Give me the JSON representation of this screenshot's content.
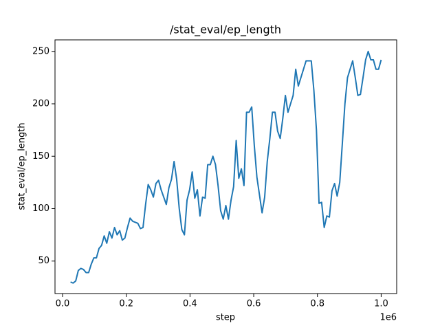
{
  "chart_data": {
    "type": "line",
    "title": "/stat_eval/ep_length",
    "x_label": "step",
    "y_label": "stat_eval/ep_length",
    "x_offset_label": "1e6",
    "x": [
      25000,
      33125,
      41250,
      49375,
      57500,
      65625,
      73750,
      81875,
      90000,
      98125,
      106250,
      114375,
      122500,
      130625,
      138750,
      146875,
      155000,
      163125,
      171250,
      179375,
      187500,
      195625,
      203750,
      211875,
      220000,
      228125,
      236250,
      244375,
      252500,
      260625,
      268750,
      276875,
      285000,
      293125,
      301250,
      309375,
      317500,
      325625,
      333750,
      341875,
      350000,
      358125,
      366250,
      374375,
      382500,
      390625,
      398750,
      406875,
      415000,
      423125,
      431250,
      439375,
      447500,
      455625,
      463750,
      471875,
      480000,
      488125,
      496250,
      504375,
      512500,
      520625,
      528750,
      536875,
      545000,
      553125,
      561250,
      569375,
      577500,
      585625,
      593750,
      601875,
      610000,
      618125,
      626250,
      634375,
      642500,
      650625,
      658750,
      666875,
      675000,
      683125,
      691250,
      699375,
      707500,
      715625,
      723750,
      731875,
      740000,
      748125,
      756250,
      764375,
      772500,
      780625,
      788750,
      796875,
      805000,
      813125,
      821250,
      829375,
      837500,
      845625,
      853750,
      861875,
      870000,
      878125,
      886250,
      894375,
      902500,
      910625,
      918750,
      926875,
      935000,
      943125,
      951250,
      959375,
      967500,
      975625,
      983750,
      991875,
      1000000
    ],
    "series": [
      {
        "name": "stat_eval/ep_length",
        "color": "#1f77b4",
        "values": [
          30,
          29,
          31,
          41,
          43,
          42,
          39,
          39,
          47,
          53,
          53,
          62,
          65,
          74,
          67,
          78,
          72,
          82,
          75,
          79,
          70,
          72,
          82,
          91,
          88,
          87,
          86,
          81,
          82,
          104,
          123,
          118,
          111,
          124,
          127,
          118,
          111,
          104,
          120,
          128,
          145,
          128,
          100,
          80,
          75,
          108,
          118,
          135,
          110,
          118,
          93,
          111,
          110,
          142,
          142,
          150,
          142,
          122,
          98,
          90,
          103,
          90,
          108,
          121,
          165,
          129,
          138,
          122,
          192,
          192,
          197,
          160,
          130,
          113,
          96,
          111,
          145,
          167,
          192,
          192,
          174,
          167,
          186,
          208,
          192,
          200,
          208,
          233,
          217,
          225,
          233,
          241,
          241,
          241,
          213,
          175,
          105,
          106,
          82,
          93,
          92,
          117,
          124,
          112,
          125,
          162,
          200,
          225,
          233,
          241,
          225,
          208,
          209,
          225,
          242,
          250,
          242,
          242,
          233,
          233,
          242
        ]
      }
    ],
    "xlim": [
      -23750,
      1048750
    ],
    "ylim": [
      19,
      261
    ],
    "xticks": [
      {
        "value": 0,
        "label": "0.0"
      },
      {
        "value": 200000,
        "label": "0.2"
      },
      {
        "value": 400000,
        "label": "0.4"
      },
      {
        "value": 600000,
        "label": "0.6"
      },
      {
        "value": 800000,
        "label": "0.8"
      },
      {
        "value": 1000000,
        "label": "1.0"
      }
    ],
    "yticks": [
      50,
      100,
      150,
      200,
      250
    ],
    "grid": false
  }
}
